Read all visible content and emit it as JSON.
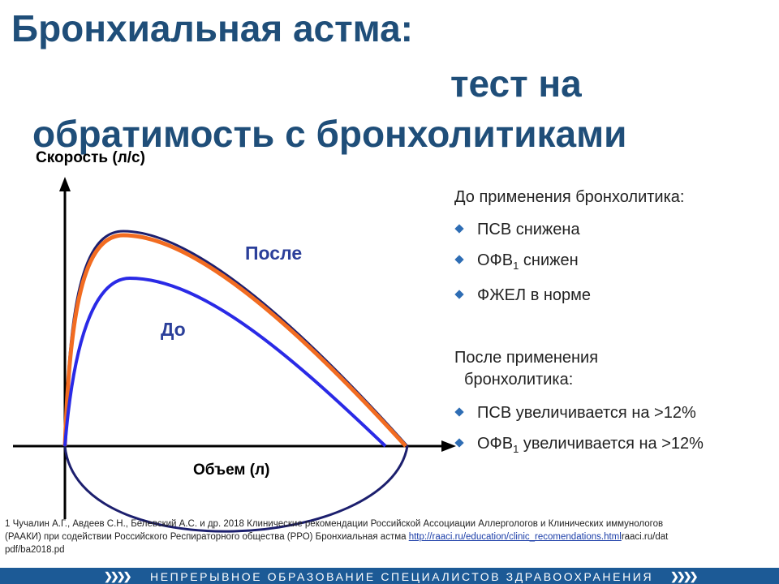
{
  "title": {
    "line1": "Бронхиальная астма:",
    "line2": "тест на",
    "line3": "обратимость с бронхолитиками"
  },
  "diagram": {
    "y_axis_label": "Скорость (л/с)",
    "x_axis_label": "Объем (л)",
    "after_label": "После",
    "before_label": "До",
    "colors": {
      "after": "#f26c21",
      "before": "#2a2ae6",
      "envelope": "#1c1f6e",
      "axes": "#000000"
    }
  },
  "panel": {
    "before_heading": "До применения бронхолитика:",
    "before_items": [
      {
        "main": "ПСВ снижена",
        "sub": "",
        "rest": ""
      },
      {
        "main": "ОФВ",
        "sub": "1",
        "rest": " снижен"
      },
      {
        "main": "ФЖЕЛ в норме",
        "sub": "",
        "rest": ""
      }
    ],
    "after_heading_line1": "После применения",
    "after_heading_line2": "бронхолитика:",
    "after_items": [
      {
        "main": "ПСВ увеличивается на >12%",
        "sub": "",
        "rest": ""
      },
      {
        "main": "ОФВ",
        "sub": "1",
        "rest": " увеличивается на >12%"
      }
    ],
    "bullet_color": "#2e6db4"
  },
  "footnote": {
    "text1": "1 Чучалин А.Г., Авдеев С.Н., Белевский А.С. и др. 2018 Клинические рекомендации Российской Ассоциации Аллергологов и Клинических иммунологов",
    "text2": "(РААКИ)  при содействии Российского Респираторного общества (РРО)  Бронхиальная астма ",
    "link": "http://raaci.ru/education/clinic_recomendations.html",
    "text3": "raaci.ru/dat",
    "text4": "pdf/ba2018.pd"
  },
  "footer": {
    "text": "НЕПРЕРЫВНОЕ ОБРАЗОВАНИЕ СПЕЦИАЛИСТОВ ЗДРАВООХРАНЕНИЯ",
    "color": "#1c5a96"
  }
}
